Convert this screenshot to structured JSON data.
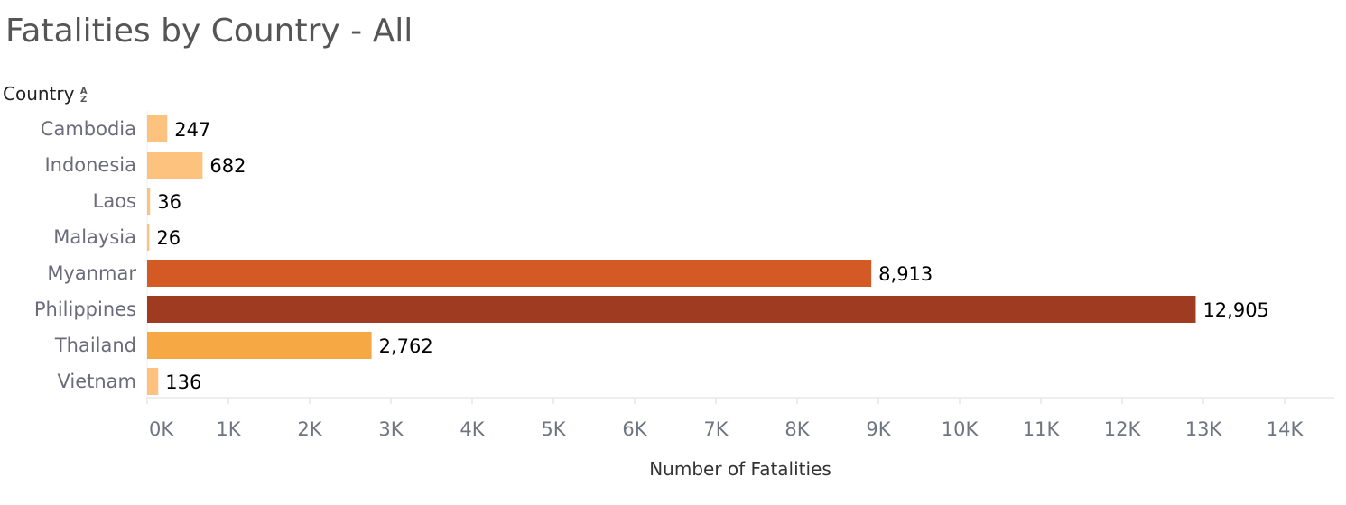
{
  "title": "Fatalities by Country - All",
  "row_header": "Country",
  "sort_icon": "sort-alpha-icon",
  "chart_data": {
    "type": "bar",
    "orientation": "horizontal",
    "categories": [
      "Cambodia",
      "Indonesia",
      "Laos",
      "Malaysia",
      "Myanmar",
      "Philippines",
      "Thailand",
      "Vietnam"
    ],
    "values": [
      247,
      682,
      36,
      26,
      8913,
      12905,
      2762,
      136
    ],
    "value_labels": [
      "247",
      "682",
      "36",
      "26",
      "8,913",
      "12,905",
      "2,762",
      "136"
    ],
    "colors": [
      "#FDC37E",
      "#FDC37E",
      "#FDC37E",
      "#FDC37E",
      "#D35A24",
      "#9E3B20",
      "#F5A843",
      "#FDC37E"
    ],
    "xlabel": "Number of Fatalities",
    "xlim": [
      0,
      14000
    ],
    "xticks": [
      0,
      1000,
      2000,
      3000,
      4000,
      5000,
      6000,
      7000,
      8000,
      9000,
      10000,
      11000,
      12000,
      13000,
      14000
    ],
    "xtick_labels": [
      "0K",
      "1K",
      "2K",
      "3K",
      "4K",
      "5K",
      "6K",
      "7K",
      "8K",
      "9K",
      "10K",
      "11K",
      "12K",
      "13K",
      "14K"
    ],
    "grid": false
  }
}
